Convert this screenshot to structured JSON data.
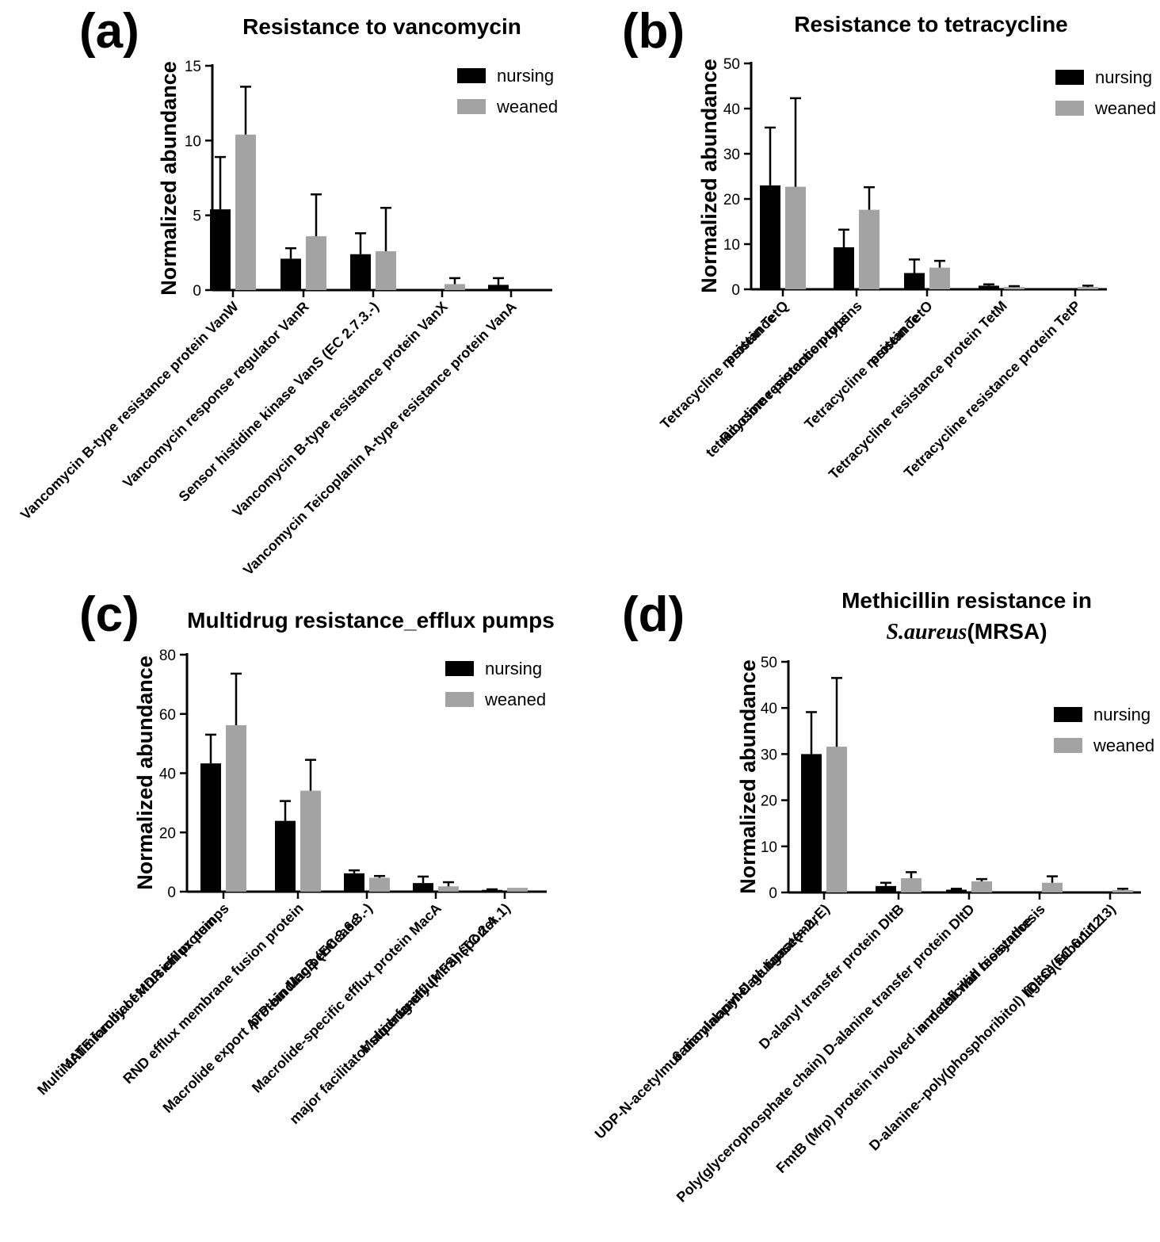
{
  "colors": {
    "nursing": "#000000",
    "weaned": "#a3a3a3"
  },
  "chart_data": [
    {
      "panel": "(a)",
      "type": "bar",
      "title": "Resistance to vancomycin",
      "ylabel": "Normalized abundance",
      "ylim": [
        0,
        15
      ],
      "yticks": [
        0,
        5,
        10,
        15
      ],
      "legend": {
        "placement": "top-right",
        "entries": [
          "nursing",
          "weaned"
        ]
      },
      "categories": [
        [
          "Vancomycin B-type resistance protein VanW"
        ],
        [
          "Vancomycin response regulator VanR"
        ],
        [
          "Sensor histidine kinase VanS (EC 2.7.3.-)"
        ],
        [
          "Vancomycin B-type resistance protein VanX"
        ],
        [
          "Vancomycin Teicoplanin A-type resistance protein VanA"
        ]
      ],
      "series": [
        {
          "name": "nursing",
          "values": [
            5.4,
            2.1,
            2.4,
            0,
            0.35
          ],
          "errors": [
            3.5,
            0.7,
            1.4,
            0,
            0.45
          ]
        },
        {
          "name": "weaned",
          "values": [
            10.4,
            3.6,
            2.6,
            0.4,
            0
          ],
          "errors": [
            3.2,
            2.8,
            2.9,
            0.4,
            0
          ]
        }
      ]
    },
    {
      "panel": "(b)",
      "type": "bar",
      "title": "Resistance to tetracycline",
      "ylabel": "Normalized abundance",
      "ylim": [
        0,
        50
      ],
      "yticks": [
        0,
        10,
        20,
        30,
        40,
        50
      ],
      "legend": {
        "placement": "top-right",
        "entries": [
          "nursing",
          "weaned"
        ]
      },
      "categories": [
        [
          "Tetracycline resistance",
          "protein TetQ"
        ],
        [
          "Ribosome protection-type",
          "tetracycline resistance proteins"
        ],
        [
          "Tetracycline resistance",
          "protein TetO"
        ],
        [
          "Tetracycline resistance protein TetM"
        ],
        [
          "Tetracycline resistance protein TetP"
        ]
      ],
      "series": [
        {
          "name": "nursing",
          "values": [
            23,
            9.3,
            3.6,
            0.8,
            0
          ],
          "errors": [
            12.8,
            3.9,
            3.0,
            0.3,
            0
          ]
        },
        {
          "name": "weaned",
          "values": [
            22.7,
            17.6,
            4.8,
            0.5,
            0.5
          ],
          "errors": [
            19.6,
            5.0,
            1.5,
            0.2,
            0.3
          ]
        }
      ]
    },
    {
      "panel": "(c)",
      "type": "bar",
      "title": "Multidrug resistance_efflux pumps",
      "ylabel": "Normalized abundance",
      "ylim": [
        0,
        80
      ],
      "yticks": [
        0,
        20,
        40,
        60,
        80
      ],
      "legend": {
        "placement": "top-right",
        "entries": [
          "nursing",
          "weaned"
        ]
      },
      "categories": [
        [
          "Multi antimicrobial extrusion protein",
          "MATE family of MDR efflux pumps"
        ],
        [
          "RND efflux membrane fusion protein"
        ],
        [
          "Macrolide export ATP-binding/permease",
          "protein MacB (EC 3.6.3.-)"
        ],
        [
          "Macrolide-specific efflux protein MacA"
        ],
        [
          "Multidrug-efflux transporter",
          "major facilitator superfamily (MFS) (TC 2.A.1)"
        ]
      ],
      "series": [
        {
          "name": "nursing",
          "values": [
            43.3,
            23.9,
            6.2,
            2.9,
            0.6
          ],
          "errors": [
            9.7,
            6.7,
            1.0,
            2.2,
            0.2
          ]
        },
        {
          "name": "weaned",
          "values": [
            56.2,
            34.1,
            4.7,
            1.8,
            1.3
          ],
          "errors": [
            17.4,
            10.4,
            0.6,
            1.4,
            0
          ]
        }
      ]
    },
    {
      "panel": "(d)",
      "type": "bar",
      "title": [
        "Methicillin resistance in",
        "S.aureus",
        "(MRSA)"
      ],
      "ylabel": "Normalized abundance",
      "ylim": [
        0,
        50
      ],
      "yticks": [
        0,
        10,
        20,
        30,
        40,
        50
      ],
      "legend": {
        "placement": "top-right",
        "entries": [
          "nursing",
          "weaned"
        ]
      },
      "categories": [
        [
          "UDP-N-acetylmuramoylalanyl-D-glutamate--2,",
          "6-diaminopimelate ligase(murE)"
        ],
        [
          "D-alanyl transfer protein DltB"
        ],
        [
          "Poly(glycerophosphate chain) D-alanine transfer protein DltD"
        ],
        [
          "FmtB (Mrp) protein involved in methicillin resistance",
          "and cell wall biosynthesis"
        ],
        [
          "D-alanine--poly(phosphoribitol) ligase subunit 2",
          "(DltC)(EC 6.1.1.13)"
        ]
      ],
      "series": [
        {
          "name": "nursing",
          "values": [
            30,
            1.4,
            0.6,
            0,
            0
          ],
          "errors": [
            9.1,
            0.7,
            0.2,
            0,
            0
          ]
        },
        {
          "name": "weaned",
          "values": [
            31.6,
            3.1,
            2.4,
            2.1,
            0.5
          ],
          "errors": [
            14.9,
            1.3,
            0.5,
            1.4,
            0.3
          ]
        }
      ]
    }
  ]
}
